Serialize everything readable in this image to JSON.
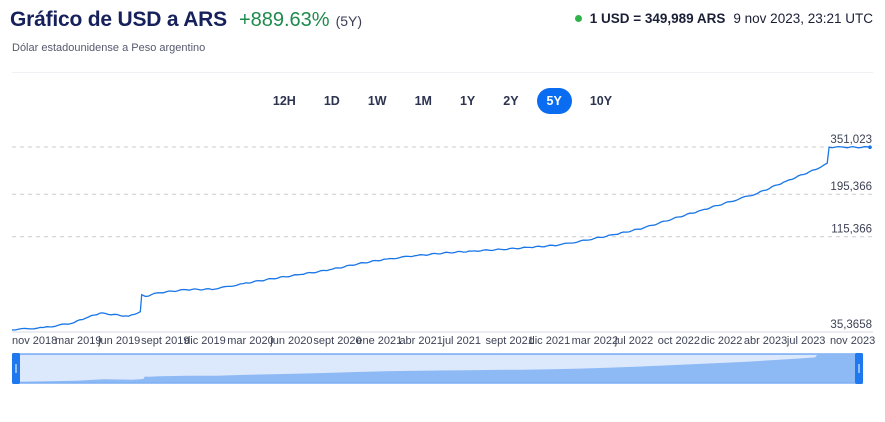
{
  "header": {
    "title": "Gráfico de USD a ARS",
    "change": "+889.63%",
    "change_period": "(5Y)",
    "subtitle": "Dólar estadounidense a Peso argentino",
    "rate": "1 USD = 349,989 ARS",
    "rate_time": "9 nov 2023, 23:21 UTC",
    "colors": {
      "title": "#16205b",
      "change": "#1e8b4d",
      "live_dot": "#2fb34a"
    }
  },
  "ranges": [
    "12H",
    "1D",
    "1W",
    "1M",
    "1Y",
    "2Y",
    "5Y",
    "10Y"
  ],
  "active_range": "5Y",
  "chart_data": {
    "type": "line",
    "y_scale": "log",
    "y_ticks": [
      351.023,
      195.366,
      115.366,
      35.3658
    ],
    "y_tick_labels": [
      "351,023",
      "195,366",
      "115,366",
      "35,3658"
    ],
    "x_tick_labels": [
      "nov 2018",
      "mar 2019",
      "jun 2019",
      "sept 2019",
      "dic 2019",
      "mar 2020",
      "jun 2020",
      "sept 2020",
      "ene 2021",
      "abr 2021",
      "jul 2021",
      "sept 2021",
      "dic 2021",
      "mar 2022",
      "jul 2022",
      "oct 2022",
      "dic 2022",
      "abr 2023",
      "jul 2023",
      "nov 2023"
    ],
    "ylim": [
      35.3658,
      351.023
    ],
    "grid": "horizontal dashed",
    "color": "#1976e6",
    "series": [
      {
        "x": [
          "2018-11-09",
          "2019-01-15",
          "2019-03-15",
          "2019-04-15",
          "2019-05-15",
          "2019-07-15",
          "2019-08-09",
          "2019-08-12",
          "2019-08-20",
          "2019-09-15",
          "2019-11-15",
          "2020-01-15",
          "2020-03-15",
          "2020-05-15",
          "2020-07-15",
          "2020-09-15",
          "2020-11-15",
          "2021-01-15",
          "2021-03-15",
          "2021-05-15",
          "2021-07-15",
          "2021-09-15",
          "2021-11-15",
          "2022-01-15",
          "2022-03-15",
          "2022-05-15",
          "2022-07-15",
          "2022-09-15",
          "2022-11-15",
          "2023-01-15",
          "2023-03-15",
          "2023-05-15",
          "2023-07-15",
          "2023-08-10",
          "2023-08-14",
          "2023-09-15",
          "2023-11-09"
        ],
        "values": [
          36.3,
          37.4,
          39.3,
          42.0,
          44.7,
          43.0,
          45.5,
          56.2,
          55.0,
          57.5,
          59.8,
          60.2,
          64.5,
          68.5,
          72.2,
          76.5,
          82.5,
          87.5,
          91.0,
          94.2,
          96.5,
          98.5,
          101.0,
          104.0,
          110.5,
          118.5,
          128.5,
          144.0,
          160.0,
          178.0,
          198.0,
          230.0,
          265.0,
          287.0,
          350.0,
          350.0,
          350.0
        ]
      }
    ]
  }
}
